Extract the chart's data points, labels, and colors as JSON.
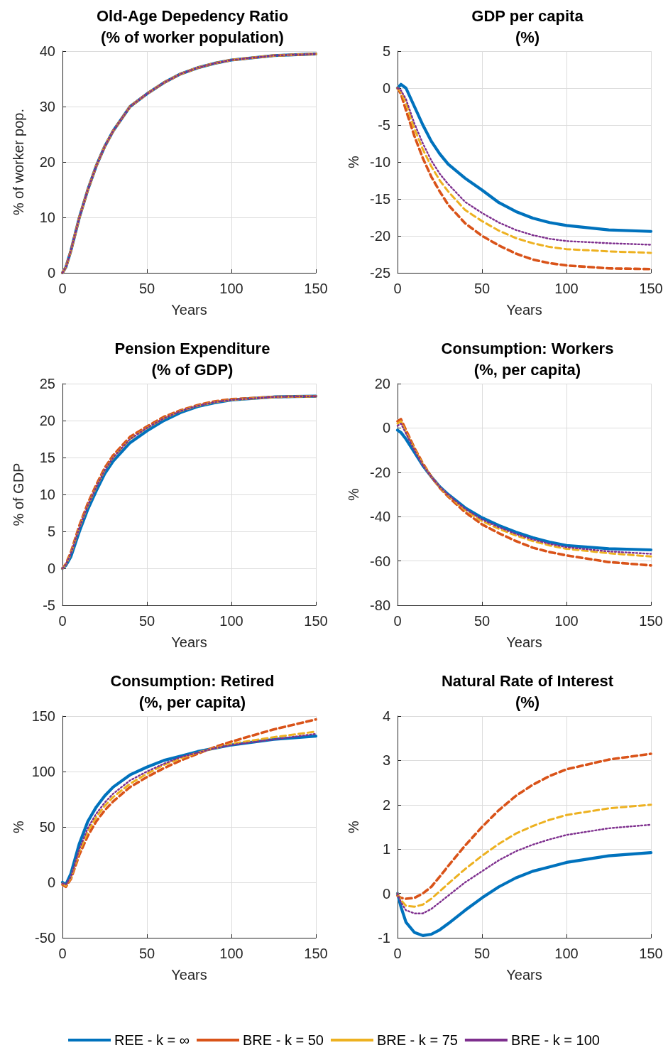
{
  "chart_data": [
    {
      "type": "line",
      "title": "Old-Age Depedency Ratio\n(% of worker population)",
      "xlabel": "Years",
      "ylabel": "% of worker pop.",
      "x": [
        0,
        2,
        5,
        10,
        15,
        20,
        25,
        30,
        40,
        50,
        60,
        70,
        80,
        90,
        100,
        125,
        150
      ],
      "xlim": [
        0,
        150
      ],
      "xticks": [
        0,
        50,
        100,
        150
      ],
      "ylim": [
        0,
        40
      ],
      "yticks": [
        0,
        10,
        20,
        30,
        40
      ],
      "grid": true,
      "marker": "none",
      "legend": "bottom",
      "series": [
        {
          "name": "REE - k = ∞",
          "color": "#0072bd",
          "line_style": "solid",
          "values": [
            0,
            1,
            4,
            10,
            15,
            19.3,
            22.8,
            25.6,
            30,
            32.3,
            34.3,
            35.9,
            37,
            37.8,
            38.4,
            39.2,
            39.5
          ]
        },
        {
          "name": "BRE - k = 50",
          "color": "#d95319",
          "line_style": "dashed",
          "values": [
            0,
            1,
            4,
            10,
            15,
            19.3,
            22.8,
            25.6,
            30,
            32.3,
            34.3,
            35.9,
            37,
            37.8,
            38.4,
            39.2,
            39.5
          ]
        },
        {
          "name": "BRE - k = 75",
          "color": "#edb120",
          "line_style": "dashed",
          "values": [
            0,
            1,
            4,
            10,
            15,
            19.3,
            22.8,
            25.6,
            30,
            32.3,
            34.3,
            35.9,
            37,
            37.8,
            38.4,
            39.2,
            39.5
          ]
        },
        {
          "name": "BRE - k = 100",
          "color": "#7e2f8e",
          "line_style": "dotted",
          "values": [
            0,
            1,
            4,
            10,
            15,
            19.3,
            22.8,
            25.6,
            30,
            32.3,
            34.3,
            35.9,
            37,
            37.8,
            38.4,
            39.2,
            39.5
          ]
        }
      ]
    },
    {
      "type": "line",
      "title": "GDP per capita\n(%)",
      "xlabel": "Years",
      "ylabel": "%",
      "x": [
        0,
        2,
        5,
        10,
        15,
        20,
        25,
        30,
        40,
        50,
        60,
        70,
        80,
        90,
        100,
        125,
        150
      ],
      "xlim": [
        0,
        150
      ],
      "xticks": [
        0,
        50,
        100,
        150
      ],
      "ylim": [
        -25,
        5
      ],
      "yticks": [
        -25,
        -20,
        -15,
        -10,
        -5,
        0,
        5
      ],
      "grid": true,
      "marker": "none",
      "legend": "bottom",
      "series": [
        {
          "name": "REE - k = ∞",
          "color": "#0072bd",
          "line_style": "solid",
          "values": [
            0,
            0.5,
            0,
            -2.5,
            -5,
            -7.2,
            -8.9,
            -10.3,
            -12.2,
            -13.8,
            -15.5,
            -16.7,
            -17.6,
            -18.2,
            -18.6,
            -19.2,
            -19.4
          ]
        },
        {
          "name": "BRE - k = 50",
          "color": "#d95319",
          "line_style": "dashed",
          "values": [
            0,
            -0.8,
            -3,
            -6.5,
            -9.5,
            -12,
            -14,
            -15.8,
            -18.3,
            -20,
            -21.3,
            -22.4,
            -23.2,
            -23.7,
            -24,
            -24.4,
            -24.5
          ]
        },
        {
          "name": "BRE - k = 75",
          "color": "#edb120",
          "line_style": "dashed",
          "values": [
            0,
            -0.5,
            -2,
            -5.5,
            -8.3,
            -10.6,
            -12.5,
            -14,
            -16.5,
            -18,
            -19.3,
            -20.3,
            -21,
            -21.5,
            -21.8,
            -22.1,
            -22.3
          ]
        },
        {
          "name": "BRE - k = 100",
          "color": "#7e2f8e",
          "line_style": "dotted",
          "values": [
            0,
            -0.3,
            -1.5,
            -4.8,
            -7.5,
            -9.8,
            -11.6,
            -13,
            -15.4,
            -16.9,
            -18.2,
            -19.2,
            -19.9,
            -20.4,
            -20.7,
            -21,
            -21.2
          ]
        }
      ]
    },
    {
      "type": "line",
      "title": "Pension Expenditure\n(% of GDP)",
      "xlabel": "Years",
      "ylabel": "% of GDP",
      "x": [
        0,
        2,
        5,
        10,
        15,
        20,
        25,
        30,
        40,
        50,
        60,
        70,
        80,
        90,
        100,
        125,
        150
      ],
      "xlim": [
        0,
        150
      ],
      "xticks": [
        0,
        50,
        100,
        150
      ],
      "ylim": [
        -5,
        25
      ],
      "yticks": [
        -5,
        0,
        5,
        10,
        15,
        20,
        25
      ],
      "grid": true,
      "marker": "none",
      "legend": "bottom",
      "series": [
        {
          "name": "REE - k = ∞",
          "color": "#0072bd",
          "line_style": "solid",
          "values": [
            0,
            0.4,
            1.6,
            5,
            8,
            10.5,
            12.8,
            14.5,
            17,
            18.6,
            20,
            21.1,
            21.9,
            22.4,
            22.8,
            23.2,
            23.3
          ]
        },
        {
          "name": "BRE - k = 50",
          "color": "#d95319",
          "line_style": "dashed",
          "values": [
            0,
            0.6,
            2.2,
            5.8,
            8.8,
            11.3,
            13.6,
            15.3,
            17.8,
            19.2,
            20.5,
            21.4,
            22.1,
            22.6,
            22.9,
            23.2,
            23.3
          ]
        },
        {
          "name": "BRE - k = 75",
          "color": "#edb120",
          "line_style": "dashed",
          "values": [
            0,
            0.5,
            2,
            5.5,
            8.5,
            11,
            13.3,
            15,
            17.5,
            19,
            20.3,
            21.3,
            22,
            22.5,
            22.8,
            23.2,
            23.3
          ]
        },
        {
          "name": "BRE - k = 100",
          "color": "#7e2f8e",
          "line_style": "dotted",
          "values": [
            0,
            0.5,
            2,
            5.5,
            8.5,
            11,
            13.3,
            15,
            17.5,
            19,
            20.3,
            21.3,
            22,
            22.5,
            22.8,
            23.2,
            23.3
          ]
        }
      ]
    },
    {
      "type": "line",
      "title": "Consumption: Workers\n(%, per capita)",
      "xlabel": "Years",
      "ylabel": "%",
      "x": [
        0,
        2,
        5,
        10,
        15,
        20,
        25,
        30,
        40,
        50,
        60,
        70,
        80,
        90,
        100,
        125,
        150
      ],
      "xlim": [
        0,
        150
      ],
      "xticks": [
        0,
        50,
        100,
        150
      ],
      "ylim": [
        -80,
        20
      ],
      "yticks": [
        -80,
        -60,
        -40,
        -20,
        0,
        20
      ],
      "grid": true,
      "marker": "none",
      "legend": "bottom",
      "series": [
        {
          "name": "REE - k = ∞",
          "color": "#0072bd",
          "line_style": "solid",
          "values": [
            -1,
            -2,
            -5,
            -11,
            -17,
            -22,
            -26.5,
            -30,
            -36,
            -40.5,
            -44,
            -47,
            -49.5,
            -51.5,
            -53,
            -54.5,
            -55
          ]
        },
        {
          "name": "BRE - k = 50",
          "color": "#d95319",
          "line_style": "dashed",
          "values": [
            3,
            4,
            -1,
            -9,
            -16,
            -22,
            -27,
            -31,
            -38,
            -43.5,
            -47.5,
            -51,
            -54,
            -56,
            -57.5,
            -60.5,
            -62
          ]
        },
        {
          "name": "BRE - k = 75",
          "color": "#edb120",
          "line_style": "dashed",
          "values": [
            2,
            3,
            -2,
            -9.5,
            -16.5,
            -22,
            -26.8,
            -30.5,
            -37,
            -42,
            -45.5,
            -48.5,
            -51,
            -53,
            -54.5,
            -56.5,
            -58
          ]
        },
        {
          "name": "BRE - k = 100",
          "color": "#7e2f8e",
          "line_style": "dotted",
          "values": [
            1,
            2,
            -2.5,
            -10,
            -16.8,
            -22,
            -26.6,
            -30.2,
            -36.5,
            -41.3,
            -44.8,
            -47.8,
            -50.3,
            -52.3,
            -53.8,
            -55.7,
            -56.8
          ]
        }
      ]
    },
    {
      "type": "line",
      "title": "Consumption: Retired\n(%, per capita)",
      "xlabel": "Years",
      "ylabel": "%",
      "x": [
        0,
        2,
        5,
        10,
        15,
        20,
        25,
        30,
        40,
        50,
        60,
        70,
        80,
        90,
        100,
        125,
        150
      ],
      "xlim": [
        0,
        150
      ],
      "xticks": [
        0,
        50,
        100,
        150
      ],
      "ylim": [
        -50,
        150
      ],
      "yticks": [
        -50,
        0,
        50,
        100,
        150
      ],
      "grid": true,
      "marker": "none",
      "legend": "bottom",
      "series": [
        {
          "name": "REE - k = ∞",
          "color": "#0072bd",
          "line_style": "solid",
          "values": [
            0,
            -2,
            8,
            35,
            55,
            68,
            78,
            86,
            97,
            104,
            110,
            114,
            118,
            121,
            124,
            129,
            132
          ]
        },
        {
          "name": "BRE - k = 50",
          "color": "#d95319",
          "line_style": "dashed",
          "values": [
            -2,
            -4,
            3,
            25,
            42,
            55,
            65,
            73,
            86,
            95,
            103,
            110,
            116,
            122,
            127,
            138,
            147
          ]
        },
        {
          "name": "BRE - k = 75",
          "color": "#edb120",
          "line_style": "dashed",
          "values": [
            -1,
            -3,
            4,
            28,
            46,
            59,
            69,
            77,
            89,
            98,
            106,
            112,
            117,
            121,
            125,
            131,
            136
          ]
        },
        {
          "name": "BRE - k = 100",
          "color": "#7e2f8e",
          "line_style": "dotted",
          "values": [
            -1,
            -2,
            5,
            30,
            49,
            62,
            72,
            80,
            92,
            100,
            107,
            113,
            117,
            121,
            124,
            129,
            134
          ]
        }
      ]
    },
    {
      "type": "line",
      "title": "Natural Rate of Interest\n(%)",
      "xlabel": "Years",
      "ylabel": "%",
      "x": [
        0,
        2,
        5,
        10,
        15,
        20,
        25,
        30,
        40,
        50,
        60,
        70,
        80,
        90,
        100,
        125,
        150
      ],
      "xlim": [
        0,
        150
      ],
      "xticks": [
        0,
        50,
        100,
        150
      ],
      "ylim": [
        -1,
        4
      ],
      "yticks": [
        -1,
        0,
        1,
        2,
        3,
        4
      ],
      "grid": true,
      "marker": "none",
      "legend": "bottom",
      "series": [
        {
          "name": "REE - k = ∞",
          "color": "#0072bd",
          "line_style": "solid",
          "values": [
            0,
            -0.3,
            -0.65,
            -0.88,
            -0.95,
            -0.92,
            -0.82,
            -0.68,
            -0.38,
            -0.1,
            0.15,
            0.35,
            0.5,
            0.6,
            0.7,
            0.85,
            0.92
          ]
        },
        {
          "name": "BRE - k = 50",
          "color": "#d95319",
          "line_style": "dashed",
          "values": [
            -0.05,
            -0.1,
            -0.12,
            -0.1,
            0,
            0.15,
            0.38,
            0.62,
            1.08,
            1.5,
            1.88,
            2.2,
            2.45,
            2.65,
            2.8,
            3.02,
            3.15
          ]
        },
        {
          "name": "BRE - k = 75",
          "color": "#edb120",
          "line_style": "dashed",
          "values": [
            0,
            -0.15,
            -0.28,
            -0.3,
            -0.25,
            -0.12,
            0.05,
            0.22,
            0.55,
            0.85,
            1.12,
            1.35,
            1.52,
            1.66,
            1.77,
            1.92,
            2.0
          ]
        },
        {
          "name": "BRE - k = 100",
          "color": "#7e2f8e",
          "line_style": "dotted",
          "values": [
            0,
            -0.2,
            -0.38,
            -0.45,
            -0.45,
            -0.35,
            -0.2,
            -0.05,
            0.25,
            0.5,
            0.75,
            0.95,
            1.1,
            1.22,
            1.32,
            1.47,
            1.55
          ]
        }
      ]
    }
  ]
}
